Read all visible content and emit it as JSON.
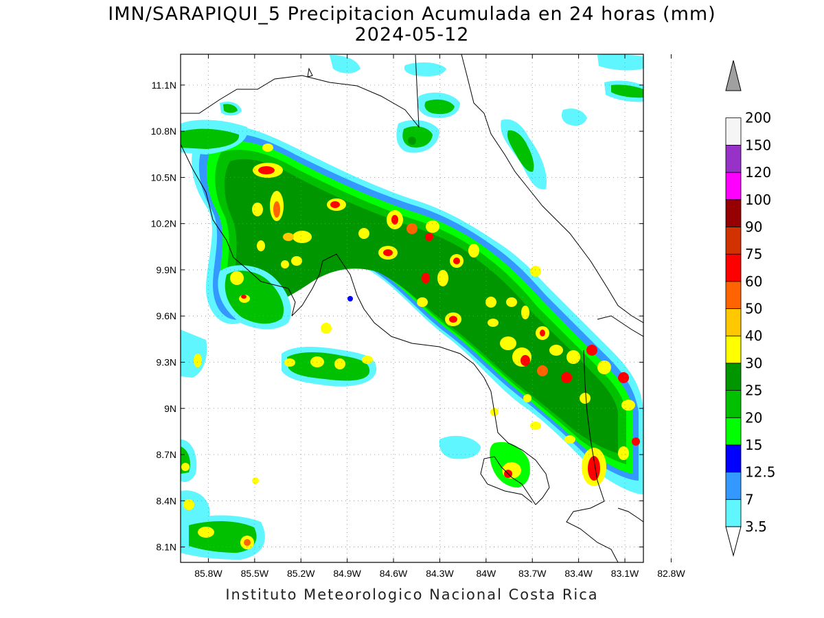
{
  "title": {
    "line1": "IMN/SARAPIQUI_5 Precipitacion Acumulada en 24 horas (mm)",
    "line2": "2024-05-12"
  },
  "footer": "Instituto Meteorologico Nacional Costa Rica",
  "map": {
    "lat_range": [
      8.0,
      11.3
    ],
    "lon_range": [
      -85.98,
      -82.98
    ],
    "lat_ticks": [
      {
        "value": 11.1,
        "label": "11.1N"
      },
      {
        "value": 10.8,
        "label": "10.8N"
      },
      {
        "value": 10.5,
        "label": "10.5N"
      },
      {
        "value": 10.2,
        "label": "10.2N"
      },
      {
        "value": 9.9,
        "label": "9.9N"
      },
      {
        "value": 9.6,
        "label": "9.6N"
      },
      {
        "value": 9.3,
        "label": "9.3N"
      },
      {
        "value": 9.0,
        "label": "9N"
      },
      {
        "value": 8.7,
        "label": "8.7N"
      },
      {
        "value": 8.4,
        "label": "8.4N"
      },
      {
        "value": 8.1,
        "label": "8.1N"
      }
    ],
    "lon_ticks": [
      {
        "value": -85.8,
        "label": "85.8W"
      },
      {
        "value": -85.5,
        "label": "85.5W"
      },
      {
        "value": -85.2,
        "label": "85.2W"
      },
      {
        "value": -84.9,
        "label": "84.9W"
      },
      {
        "value": -84.6,
        "label": "84.6W"
      },
      {
        "value": -84.3,
        "label": "84.3W"
      },
      {
        "value": -84.0,
        "label": "84W"
      },
      {
        "value": -83.7,
        "label": "83.7W"
      },
      {
        "value": -83.4,
        "label": "83.4W"
      },
      {
        "value": -83.1,
        "label": "83.1W"
      },
      {
        "value": -82.8,
        "label": "82.8W"
      }
    ],
    "gridlines": "dotted"
  },
  "colorbar": {
    "levels": [
      {
        "label": "3.5",
        "color": "#5ff6ff"
      },
      {
        "label": "7",
        "color": "#3399ff"
      },
      {
        "label": "12.5",
        "color": "#0000ff"
      },
      {
        "label": "15",
        "color": "#00ff00"
      },
      {
        "label": "20",
        "color": "#00c000"
      },
      {
        "label": "25",
        "color": "#009600"
      },
      {
        "label": "30",
        "color": "#ffff00"
      },
      {
        "label": "40",
        "color": "#ffc800"
      },
      {
        "label": "50",
        "color": "#ff6400"
      },
      {
        "label": "60",
        "color": "#ff0000"
      },
      {
        "label": "75",
        "color": "#d23200"
      },
      {
        "label": "90",
        "color": "#960000"
      },
      {
        "label": "100",
        "color": "#ff00ff"
      },
      {
        "label": "120",
        "color": "#9632c8"
      },
      {
        "label": "150",
        "color": "#f5f5f5"
      },
      {
        "label": "200",
        "color": "#a0a0a0"
      }
    ]
  }
}
